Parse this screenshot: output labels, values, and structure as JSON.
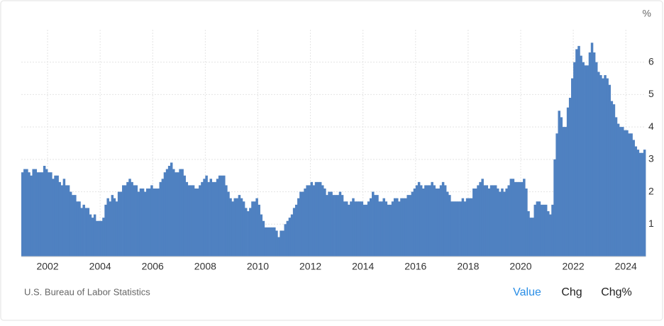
{
  "chart_data": {
    "type": "bar",
    "y_unit": "%",
    "source": "U.S. Bureau of Labor Statistics",
    "tabs": [
      "Value",
      "Chg",
      "Chg%"
    ],
    "active_tab": 0,
    "color": "#4f81c1",
    "grid": true,
    "ylim": [
      0,
      7
    ],
    "yticks": [
      1,
      2,
      3,
      4,
      5,
      6
    ],
    "categories": [
      null,
      null,
      null,
      null,
      null,
      null,
      null,
      null,
      null,
      null,
      null,
      null,
      "2002",
      null,
      null,
      null,
      null,
      null,
      null,
      null,
      null,
      null,
      null,
      null,
      null,
      null,
      null,
      null,
      null,
      null,
      null,
      null,
      null,
      null,
      null,
      null,
      "2004",
      null,
      null,
      null,
      null,
      null,
      null,
      null,
      null,
      null,
      null,
      null,
      null,
      null,
      null,
      null,
      null,
      null,
      null,
      null,
      null,
      null,
      null,
      null,
      "2006",
      null,
      null,
      null,
      null,
      null,
      null,
      null,
      null,
      null,
      null,
      null,
      null,
      null,
      null,
      null,
      null,
      null,
      null,
      null,
      null,
      null,
      null,
      null,
      "2008",
      null,
      null,
      null,
      null,
      null,
      null,
      null,
      null,
      null,
      null,
      null,
      null,
      null,
      null,
      null,
      null,
      null,
      null,
      null,
      null,
      null,
      null,
      null,
      "2010",
      null,
      null,
      null,
      null,
      null,
      null,
      null,
      null,
      null,
      null,
      null,
      null,
      null,
      null,
      null,
      null,
      null,
      null,
      null,
      null,
      null,
      null,
      null,
      "2012",
      null,
      null,
      null,
      null,
      null,
      null,
      null,
      null,
      null,
      null,
      null,
      null,
      null,
      null,
      null,
      null,
      null,
      null,
      null,
      null,
      null,
      null,
      null,
      "2014",
      null,
      null,
      null,
      null,
      null,
      null,
      null,
      null,
      null,
      null,
      null,
      null,
      null,
      null,
      null,
      null,
      null,
      null,
      null,
      null,
      null,
      null,
      null,
      "2016",
      null,
      null,
      null,
      null,
      null,
      null,
      null,
      null,
      null,
      null,
      null,
      null,
      null,
      null,
      null,
      null,
      null,
      null,
      null,
      null,
      null,
      null,
      null,
      "2018",
      null,
      null,
      null,
      null,
      null,
      null,
      null,
      null,
      null,
      null,
      null,
      null,
      null,
      null,
      null,
      null,
      null,
      null,
      null,
      null,
      null,
      null,
      null,
      "2020",
      null,
      null,
      null,
      null,
      null,
      null,
      null,
      null,
      null,
      null,
      null,
      null,
      null,
      null,
      null,
      null,
      null,
      null,
      null,
      null,
      null,
      null,
      null,
      "2022",
      null,
      null,
      null,
      null,
      null,
      null,
      null,
      null,
      null,
      null,
      null,
      null,
      null,
      null,
      null,
      null,
      null,
      null,
      null,
      null,
      null,
      null,
      null,
      "2024",
      null,
      null,
      null,
      null,
      null,
      null,
      null,
      null
    ],
    "values": [
      2.6,
      2.7,
      2.7,
      2.6,
      2.5,
      2.7,
      2.7,
      2.6,
      2.6,
      2.6,
      2.8,
      2.7,
      2.6,
      2.6,
      2.4,
      2.5,
      2.5,
      2.3,
      2.2,
      2.4,
      2.2,
      2.2,
      2.0,
      1.9,
      1.9,
      1.7,
      1.7,
      1.5,
      1.6,
      1.5,
      1.5,
      1.3,
      1.2,
      1.3,
      1.1,
      1.1,
      1.1,
      1.2,
      1.6,
      1.8,
      1.7,
      1.9,
      1.8,
      1.7,
      2.0,
      2.0,
      2.2,
      2.2,
      2.3,
      2.4,
      2.3,
      2.2,
      2.2,
      2.0,
      2.1,
      2.1,
      2.0,
      2.1,
      2.1,
      2.2,
      2.1,
      2.1,
      2.1,
      2.3,
      2.4,
      2.6,
      2.7,
      2.8,
      2.9,
      2.7,
      2.6,
      2.6,
      2.7,
      2.7,
      2.5,
      2.3,
      2.2,
      2.2,
      2.2,
      2.1,
      2.1,
      2.2,
      2.3,
      2.4,
      2.5,
      2.3,
      2.4,
      2.3,
      2.3,
      2.4,
      2.5,
      2.5,
      2.5,
      2.2,
      2.0,
      1.8,
      1.7,
      1.8,
      1.8,
      1.9,
      1.8,
      1.7,
      1.5,
      1.4,
      1.5,
      1.7,
      1.7,
      1.8,
      1.6,
      1.3,
      1.1,
      0.9,
      0.9,
      0.9,
      0.9,
      0.9,
      0.8,
      0.6,
      0.8,
      0.8,
      1.0,
      1.1,
      1.2,
      1.3,
      1.5,
      1.6,
      1.8,
      2.0,
      2.0,
      2.1,
      2.2,
      2.2,
      2.3,
      2.2,
      2.3,
      2.3,
      2.3,
      2.2,
      2.1,
      1.9,
      2.0,
      2.0,
      1.9,
      1.9,
      1.9,
      2.0,
      1.9,
      1.7,
      1.7,
      1.6,
      1.7,
      1.8,
      1.7,
      1.7,
      1.7,
      1.7,
      1.6,
      1.6,
      1.7,
      1.8,
      2.0,
      1.9,
      1.9,
      1.7,
      1.7,
      1.8,
      1.7,
      1.6,
      1.6,
      1.7,
      1.8,
      1.8,
      1.7,
      1.8,
      1.8,
      1.8,
      1.9,
      1.9,
      2.0,
      2.1,
      2.2,
      2.3,
      2.2,
      2.1,
      2.2,
      2.2,
      2.2,
      2.3,
      2.2,
      2.1,
      2.1,
      2.2,
      2.3,
      2.2,
      2.0,
      1.9,
      1.7,
      1.7,
      1.7,
      1.7,
      1.7,
      1.8,
      1.7,
      1.8,
      1.8,
      1.8,
      2.1,
      2.1,
      2.2,
      2.3,
      2.4,
      2.2,
      2.2,
      2.1,
      2.2,
      2.2,
      2.2,
      2.1,
      2.0,
      2.1,
      2.0,
      2.1,
      2.2,
      2.4,
      2.4,
      2.3,
      2.3,
      2.3,
      2.3,
      2.4,
      2.1,
      1.4,
      1.2,
      1.2,
      1.6,
      1.7,
      1.7,
      1.6,
      1.6,
      1.6,
      1.4,
      1.3,
      1.6,
      3.0,
      3.8,
      4.5,
      4.3,
      4.0,
      4.0,
      4.6,
      4.9,
      5.5,
      6.0,
      6.4,
      6.5,
      6.2,
      6.0,
      5.9,
      5.9,
      6.3,
      6.6,
      6.3,
      6.0,
      5.7,
      5.6,
      5.5,
      5.6,
      5.5,
      5.3,
      4.8,
      4.7,
      4.3,
      4.1,
      4.0,
      4.0,
      3.9,
      3.9,
      3.8,
      3.8,
      3.6,
      3.4,
      3.3,
      3.2,
      3.2,
      3.3
    ]
  }
}
